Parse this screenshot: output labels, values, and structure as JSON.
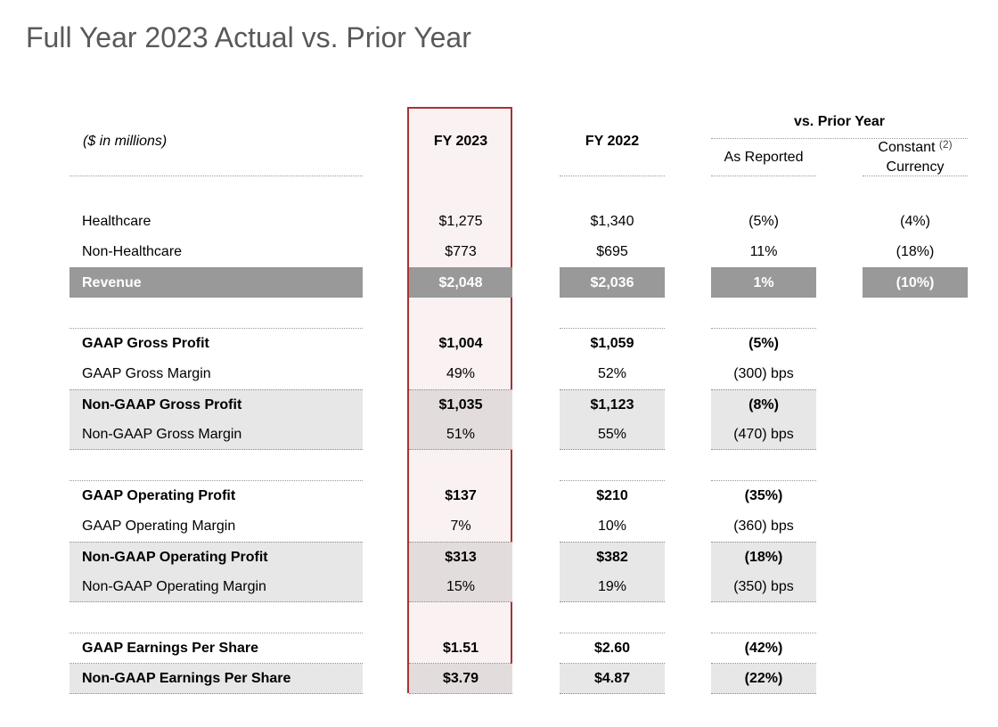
{
  "page": {
    "title": "Full Year 2023 Actual vs. Prior Year"
  },
  "header": {
    "units": "($ in millions)",
    "fy2023": "FY 2023",
    "fy2022": "FY 2022",
    "vs_prior": "vs. Prior Year",
    "as_reported": "As Reported",
    "constant": "Constant",
    "currency": "Currency",
    "footnote": "(2)"
  },
  "rows": [
    {
      "label": "Healthcare",
      "fy2023": "$1,275",
      "fy2022": "$1,340",
      "reported": "(5%)",
      "constant": "(4%)"
    },
    {
      "label": "Non-Healthcare",
      "fy2023": "$773",
      "fy2022": "$695",
      "reported": "11%",
      "constant": "(18%)"
    },
    {
      "label": "Revenue",
      "fy2023": "$2,048",
      "fy2022": "$2,036",
      "reported": "1%",
      "constant": "(10%)"
    },
    {
      "label": "GAAP Gross Profit",
      "fy2023": "$1,004",
      "fy2022": "$1,059",
      "reported": "(5%)"
    },
    {
      "label": "GAAP Gross Margin",
      "fy2023": "49%",
      "fy2022": "52%",
      "reported": "(300) bps"
    },
    {
      "label": "Non-GAAP Gross Profit",
      "fy2023": "$1,035",
      "fy2022": "$1,123",
      "reported": "(8%)"
    },
    {
      "label": "Non-GAAP Gross Margin",
      "fy2023": "51%",
      "fy2022": "55%",
      "reported": "(470) bps"
    },
    {
      "label": "GAAP Operating Profit",
      "fy2023": "$137",
      "fy2022": "$210",
      "reported": "(35%)"
    },
    {
      "label": "GAAP Operating Margin",
      "fy2023": "7%",
      "fy2022": "10%",
      "reported": "(360) bps"
    },
    {
      "label": "Non-GAAP Operating Profit",
      "fy2023": "$313",
      "fy2022": "$382",
      "reported": "(18%)"
    },
    {
      "label": "Non-GAAP Operating Margin",
      "fy2023": "15%",
      "fy2022": "19%",
      "reported": "(350) bps"
    },
    {
      "label": "GAAP Earnings Per Share",
      "fy2023": "$1.51",
      "fy2022": "$2.60",
      "reported": "(42%)"
    },
    {
      "label": "Non-GAAP Earnings Per Share",
      "fy2023": "$3.79",
      "fy2022": "$4.87",
      "reported": "(22%)"
    }
  ]
}
